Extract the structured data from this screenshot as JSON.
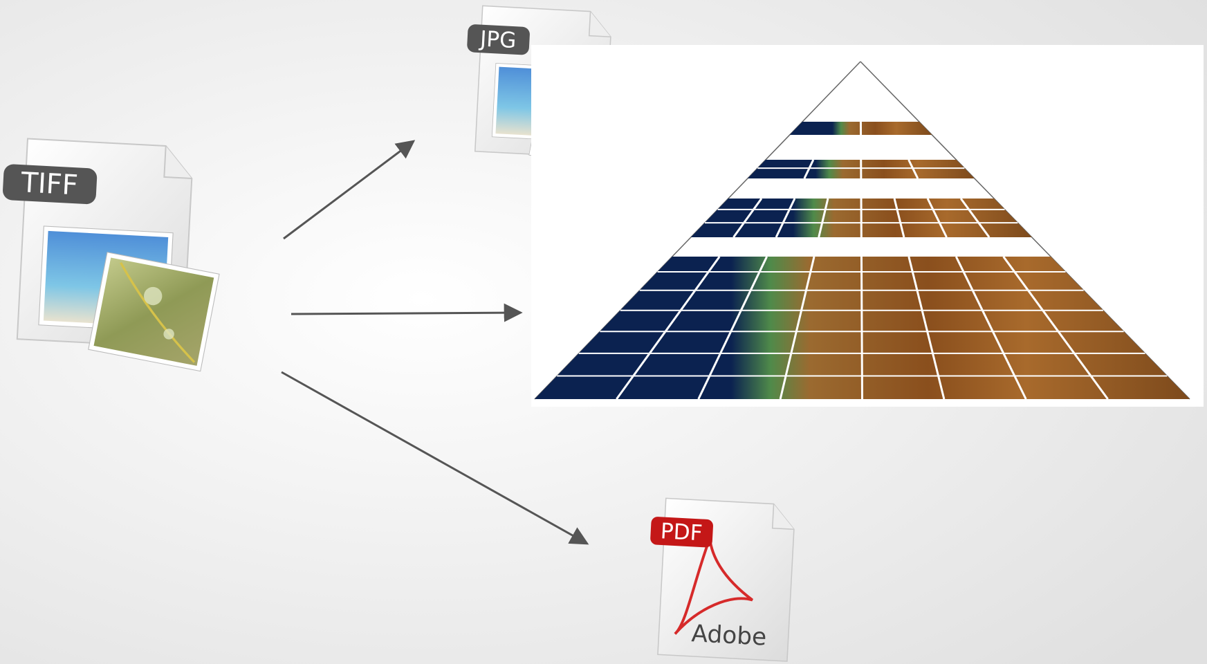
{
  "nodes": [
    {
      "label": "TIFF"
    },
    {
      "label": "JPG"
    },
    {
      "label": "PDF",
      "sublabel": "Adobe"
    }
  ]
}
